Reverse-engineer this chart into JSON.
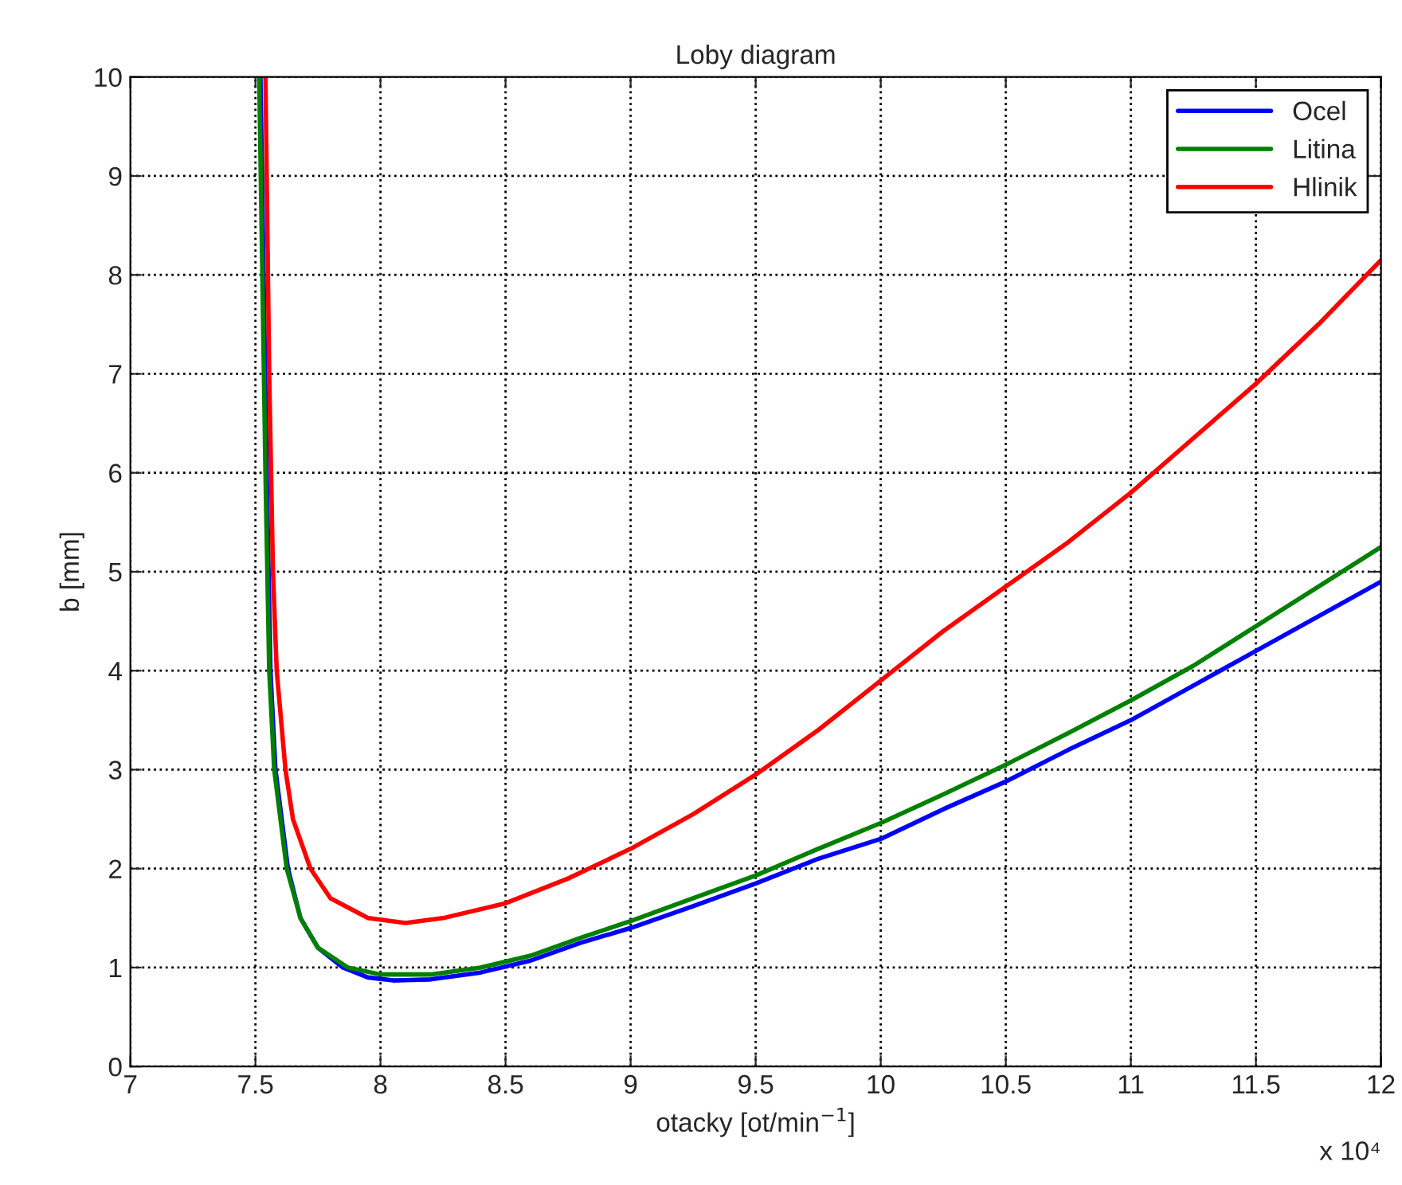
{
  "chart_data": {
    "type": "line",
    "title": "Loby diagram",
    "xlabel": "otacky [ot/min$^{−1}$]",
    "ylabel": "b [mm]",
    "annotations": [
      "x 10⁴"
    ],
    "series": [
      {
        "name": "Ocel",
        "color": "#0000ff",
        "x": [
          7.52,
          7.545,
          7.56,
          7.58,
          7.63,
          7.68,
          7.75,
          7.85,
          7.95,
          8.05,
          8.2,
          8.4,
          8.6,
          8.8,
          9.0,
          9.25,
          9.5,
          9.75,
          10.0,
          10.25,
          10.5,
          10.75,
          11.0,
          11.25,
          11.5,
          11.75,
          12.0
        ],
        "values": [
          10,
          6,
          4,
          3,
          2,
          1.5,
          1.2,
          1,
          0.9,
          0.87,
          0.88,
          0.95,
          1.07,
          1.25,
          1.4,
          1.62,
          1.85,
          2.1,
          2.3,
          2.6,
          2.88,
          3.2,
          3.5,
          3.85,
          4.2,
          4.55,
          4.9
        ]
      },
      {
        "name": "Litina",
        "color": "#008000",
        "x": [
          7.515,
          7.54,
          7.555,
          7.575,
          7.625,
          7.68,
          7.75,
          7.87,
          8.0,
          8.2,
          8.4,
          8.6,
          8.8,
          9.0,
          9.25,
          9.5,
          9.75,
          10.0,
          10.25,
          10.5,
          10.75,
          11.0,
          11.25,
          11.5,
          11.75,
          12.0
        ],
        "values": [
          10,
          6,
          4,
          3,
          2,
          1.5,
          1.2,
          1,
          0.93,
          0.93,
          1,
          1.12,
          1.3,
          1.47,
          1.7,
          1.93,
          2.2,
          2.46,
          2.75,
          3.05,
          3.37,
          3.7,
          4.05,
          4.45,
          4.85,
          5.25
        ]
      },
      {
        "name": "Hlinik",
        "color": "#ff0000",
        "x": [
          7.54,
          7.555,
          7.57,
          7.585,
          7.62,
          7.65,
          7.72,
          7.8,
          7.95,
          8.1,
          8.25,
          8.5,
          8.75,
          9.0,
          9.25,
          9.5,
          9.75,
          10.0,
          10.25,
          10.5,
          10.75,
          11.0,
          11.25,
          11.5,
          11.75,
          12.0
        ],
        "values": [
          10,
          7,
          5,
          4,
          3,
          2.5,
          2,
          1.7,
          1.5,
          1.45,
          1.5,
          1.65,
          1.9,
          2.2,
          2.55,
          2.95,
          3.4,
          3.9,
          4.4,
          4.85,
          5.3,
          5.8,
          6.35,
          6.9,
          7.5,
          8.15
        ]
      }
    ],
    "xlim": [
      7,
      12
    ],
    "xticks": [
      7,
      7.5,
      8,
      8.5,
      9,
      9.5,
      10,
      10.5,
      11,
      11.5,
      12
    ],
    "ylim": [
      0,
      10
    ],
    "yticks": [
      0,
      1,
      2,
      3,
      4,
      5,
      6,
      7,
      8,
      9,
      10
    ],
    "grid": true,
    "legend": "top right",
    "marker": "none",
    "line_style": "solid"
  }
}
